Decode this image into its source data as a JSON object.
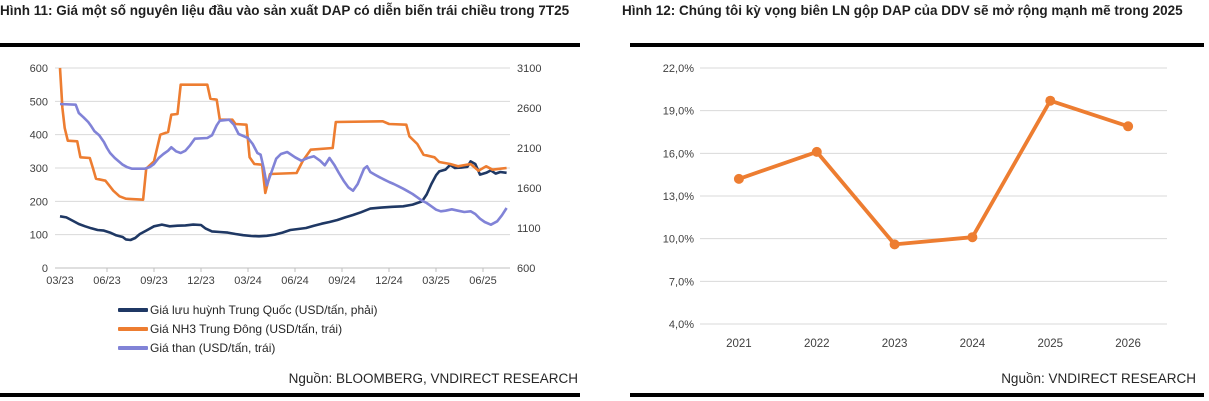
{
  "left_panel": {
    "title": "Hình 11: Giá một số nguyên liệu đầu vào sản xuất DAP có diễn biến trái chiều trong 7T25",
    "source": "Nguồn: BLOOMBERG, VNDIRECT RESEARCH",
    "legend": [
      {
        "label": "Giá lưu huỳnh Trung Quốc (USD/tấn, phải)",
        "color_key": "sulfur"
      },
      {
        "label": "Giá NH3 Trung Đông (USD/tấn, trái)",
        "color_key": "nh3"
      },
      {
        "label": "Giá than (USD/tấn, trái)",
        "color_key": "coal"
      }
    ]
  },
  "right_panel": {
    "title": "Hình 12: Chúng tôi kỳ vọng biên LN gộp DAP của DDV sẽ mở rộng mạnh mẽ trong 2025",
    "source": "Nguồn: VNDIRECT RESEARCH"
  },
  "colors": {
    "sulfur": "#1F3864",
    "nh3": "#ED7D31",
    "coal": "#8183D7",
    "grid": "#D9D9D9",
    "axis": "#BFBFBF",
    "tick_text": "#404040",
    "rule": "#000000"
  },
  "chart_data": [
    {
      "type": "line",
      "title": "Giá một số nguyên liệu đầu vào sản xuất DAP, 03/23 - 7T25",
      "x_tick_labels": [
        "03/23",
        "06/23",
        "09/23",
        "12/23",
        "03/24",
        "06/24",
        "09/24",
        "12/24",
        "03/25",
        "06/25"
      ],
      "x_month_domain": [
        0,
        29
      ],
      "legend_position": "bottom",
      "grid": true,
      "left_axis": {
        "min": 0,
        "max": 600,
        "step": 100,
        "ticks": [
          "0",
          "100",
          "200",
          "300",
          "400",
          "500",
          "600"
        ]
      },
      "right_axis": {
        "min": 600,
        "max": 3100,
        "step": 500,
        "ticks": [
          "600",
          "1100",
          "1600",
          "2100",
          "2600",
          "3100"
        ]
      },
      "series": [
        {
          "name": "Giá lưu huỳnh Trung Quốc (USD/tấn, phải)",
          "axis": "right",
          "color_key": "sulfur",
          "points": [
            [
              0,
              1246
            ],
            [
              0.4,
              1233
            ],
            [
              0.8,
              1192
            ],
            [
              1.2,
              1150
            ],
            [
              1.6,
              1121
            ],
            [
              2,
              1096
            ],
            [
              2.4,
              1075
            ],
            [
              2.8,
              1067
            ],
            [
              3.2,
              1042
            ],
            [
              3.6,
              1008
            ],
            [
              4,
              988
            ],
            [
              4.2,
              958
            ],
            [
              4.5,
              950
            ],
            [
              4.8,
              975
            ],
            [
              5.1,
              1025
            ],
            [
              5.5,
              1067
            ],
            [
              6,
              1121
            ],
            [
              6.5,
              1142
            ],
            [
              7,
              1121
            ],
            [
              7.5,
              1129
            ],
            [
              8,
              1133
            ],
            [
              8.5,
              1142
            ],
            [
              9,
              1138
            ],
            [
              9.3,
              1092
            ],
            [
              9.7,
              1058
            ],
            [
              10.2,
              1050
            ],
            [
              10.7,
              1042
            ],
            [
              11.2,
              1025
            ],
            [
              11.7,
              1010
            ],
            [
              12.2,
              1000
            ],
            [
              12.7,
              996
            ],
            [
              13.2,
              1002
            ],
            [
              13.7,
              1017
            ],
            [
              14.2,
              1042
            ],
            [
              14.7,
              1075
            ],
            [
              15.2,
              1088
            ],
            [
              15.7,
              1100
            ],
            [
              16.2,
              1129
            ],
            [
              16.7,
              1154
            ],
            [
              17.2,
              1175
            ],
            [
              17.7,
              1200
            ],
            [
              18.2,
              1233
            ],
            [
              18.7,
              1263
            ],
            [
              19.2,
              1296
            ],
            [
              19.8,
              1342
            ],
            [
              20.5,
              1355
            ],
            [
              21.2,
              1365
            ],
            [
              21.9,
              1371
            ],
            [
              22.5,
              1392
            ],
            [
              23.1,
              1433
            ],
            [
              23.4,
              1520
            ],
            [
              23.7,
              1650
            ],
            [
              24,
              1760
            ],
            [
              24.2,
              1808
            ],
            [
              24.6,
              1830
            ],
            [
              24.9,
              1890
            ],
            [
              25.2,
              1850
            ],
            [
              25.6,
              1855
            ],
            [
              26,
              1865
            ],
            [
              26.2,
              1933
            ],
            [
              26.5,
              1900
            ],
            [
              26.8,
              1767
            ],
            [
              27.2,
              1790
            ],
            [
              27.5,
              1820
            ],
            [
              27.8,
              1780
            ],
            [
              28.1,
              1800
            ],
            [
              28.5,
              1790
            ]
          ]
        },
        {
          "name": "Giá NH3 Trung Đông (USD/tấn, trái)",
          "axis": "left",
          "color_key": "nh3",
          "points": [
            [
              0,
              600
            ],
            [
              0.15,
              480
            ],
            [
              0.3,
              420
            ],
            [
              0.5,
              382
            ],
            [
              1.1,
              380
            ],
            [
              1.3,
              332
            ],
            [
              1.9,
              330
            ],
            [
              2.1,
              300
            ],
            [
              2.3,
              268
            ],
            [
              2.9,
              262
            ],
            [
              3.1,
              250
            ],
            [
              3.4,
              232
            ],
            [
              3.8,
              215
            ],
            [
              4.2,
              208
            ],
            [
              5.3,
              205
            ],
            [
              5.5,
              298
            ],
            [
              6,
              320
            ],
            [
              6.4,
              400
            ],
            [
              6.9,
              408
            ],
            [
              7.1,
              460
            ],
            [
              7.5,
              462
            ],
            [
              7.7,
              550
            ],
            [
              9.4,
              550
            ],
            [
              9.6,
              508
            ],
            [
              10,
              505
            ],
            [
              10.2,
              445
            ],
            [
              11,
              445
            ],
            [
              11.2,
              432
            ],
            [
              11.9,
              430
            ],
            [
              12.1,
              332
            ],
            [
              12.4,
              312
            ],
            [
              12.9,
              310
            ],
            [
              13.1,
              225
            ],
            [
              13.4,
              282
            ],
            [
              15.1,
              285
            ],
            [
              15.5,
              322
            ],
            [
              16,
              355
            ],
            [
              17.4,
              360
            ],
            [
              17.6,
              438
            ],
            [
              20.6,
              440
            ],
            [
              21,
              432
            ],
            [
              22.1,
              430
            ],
            [
              22.3,
              395
            ],
            [
              22.8,
              372
            ],
            [
              23.2,
              340
            ],
            [
              23.9,
              332
            ],
            [
              24.2,
              318
            ],
            [
              24.9,
              312
            ],
            [
              25.4,
              305
            ],
            [
              26.2,
              312
            ],
            [
              26.7,
              292
            ],
            [
              27.2,
              305
            ],
            [
              27.6,
              295
            ],
            [
              28.1,
              298
            ],
            [
              28.5,
              300
            ]
          ]
        },
        {
          "name": "Giá than (USD/tấn, trái)",
          "axis": "left",
          "color_key": "coal",
          "points": [
            [
              0,
              492
            ],
            [
              1,
              490
            ],
            [
              1.2,
              465
            ],
            [
              1.5,
              452
            ],
            [
              1.8,
              438
            ],
            [
              2,
              425
            ],
            [
              2.2,
              410
            ],
            [
              2.5,
              398
            ],
            [
              2.8,
              378
            ],
            [
              3,
              360
            ],
            [
              3.2,
              345
            ],
            [
              3.5,
              330
            ],
            [
              3.8,
              318
            ],
            [
              4,
              310
            ],
            [
              4.3,
              302
            ],
            [
              4.6,
              298
            ],
            [
              5.4,
              298
            ],
            [
              5.7,
              302
            ],
            [
              6,
              312
            ],
            [
              6.3,
              330
            ],
            [
              6.6,
              342
            ],
            [
              6.9,
              352
            ],
            [
              7.1,
              362
            ],
            [
              7.4,
              350
            ],
            [
              7.7,
              345
            ],
            [
              8,
              352
            ],
            [
              8.3,
              368
            ],
            [
              8.6,
              388
            ],
            [
              9.4,
              390
            ],
            [
              9.7,
              398
            ],
            [
              10,
              428
            ],
            [
              10.2,
              442
            ],
            [
              10.8,
              445
            ],
            [
              11.1,
              430
            ],
            [
              11.4,
              402
            ],
            [
              12,
              390
            ],
            [
              12.3,
              372
            ],
            [
              12.6,
              345
            ],
            [
              12.8,
              340
            ],
            [
              13,
              300
            ],
            [
              13.2,
              248
            ],
            [
              13.5,
              288
            ],
            [
              13.8,
              328
            ],
            [
              14.1,
              342
            ],
            [
              14.5,
              348
            ],
            [
              15,
              332
            ],
            [
              15.4,
              322
            ],
            [
              15.8,
              330
            ],
            [
              16.2,
              335
            ],
            [
              16.6,
              322
            ],
            [
              16.9,
              308
            ],
            [
              17.2,
              330
            ],
            [
              17.5,
              310
            ],
            [
              17.8,
              285
            ],
            [
              18.1,
              262
            ],
            [
              18.4,
              242
            ],
            [
              18.7,
              232
            ],
            [
              19,
              252
            ],
            [
              19.2,
              275
            ],
            [
              19.4,
              298
            ],
            [
              19.6,
              305
            ],
            [
              19.8,
              288
            ],
            [
              20.1,
              280
            ],
            [
              20.4,
              272
            ],
            [
              20.7,
              265
            ],
            [
              21,
              258
            ],
            [
              21.3,
              252
            ],
            [
              21.6,
              245
            ],
            [
              21.9,
              238
            ],
            [
              22.2,
              230
            ],
            [
              22.5,
              222
            ],
            [
              22.8,
              212
            ],
            [
              23.1,
              202
            ],
            [
              23.4,
              195
            ],
            [
              23.7,
              185
            ],
            [
              24,
              175
            ],
            [
              24.3,
              170
            ],
            [
              24.6,
              172
            ],
            [
              25,
              176
            ],
            [
              25.4,
              172
            ],
            [
              25.8,
              168
            ],
            [
              26.2,
              170
            ],
            [
              26.5,
              162
            ],
            [
              26.8,
              148
            ],
            [
              27.1,
              138
            ],
            [
              27.5,
              130
            ],
            [
              27.9,
              140
            ],
            [
              28.2,
              158
            ],
            [
              28.5,
              180
            ]
          ]
        }
      ],
      "source": "Nguồn: BLOOMBERG, VNDIRECT RESEARCH"
    },
    {
      "type": "line",
      "title": "Biên LN gộp DAP của DDV",
      "categories": [
        "2021",
        "2022",
        "2023",
        "2024",
        "2025",
        "2026"
      ],
      "values": [
        14.2,
        16.1,
        9.6,
        10.1,
        19.7,
        17.9
      ],
      "unit": "%",
      "ylim": [
        4,
        22
      ],
      "y_step": 3,
      "y_tick_labels": [
        "4,0%",
        "7,0%",
        "10,0%",
        "13,0%",
        "16,0%",
        "19,0%",
        "22,0%"
      ],
      "grid": true,
      "markers": true,
      "color_key": "nh3",
      "source": "Nguồn: VNDIRECT RESEARCH"
    }
  ]
}
